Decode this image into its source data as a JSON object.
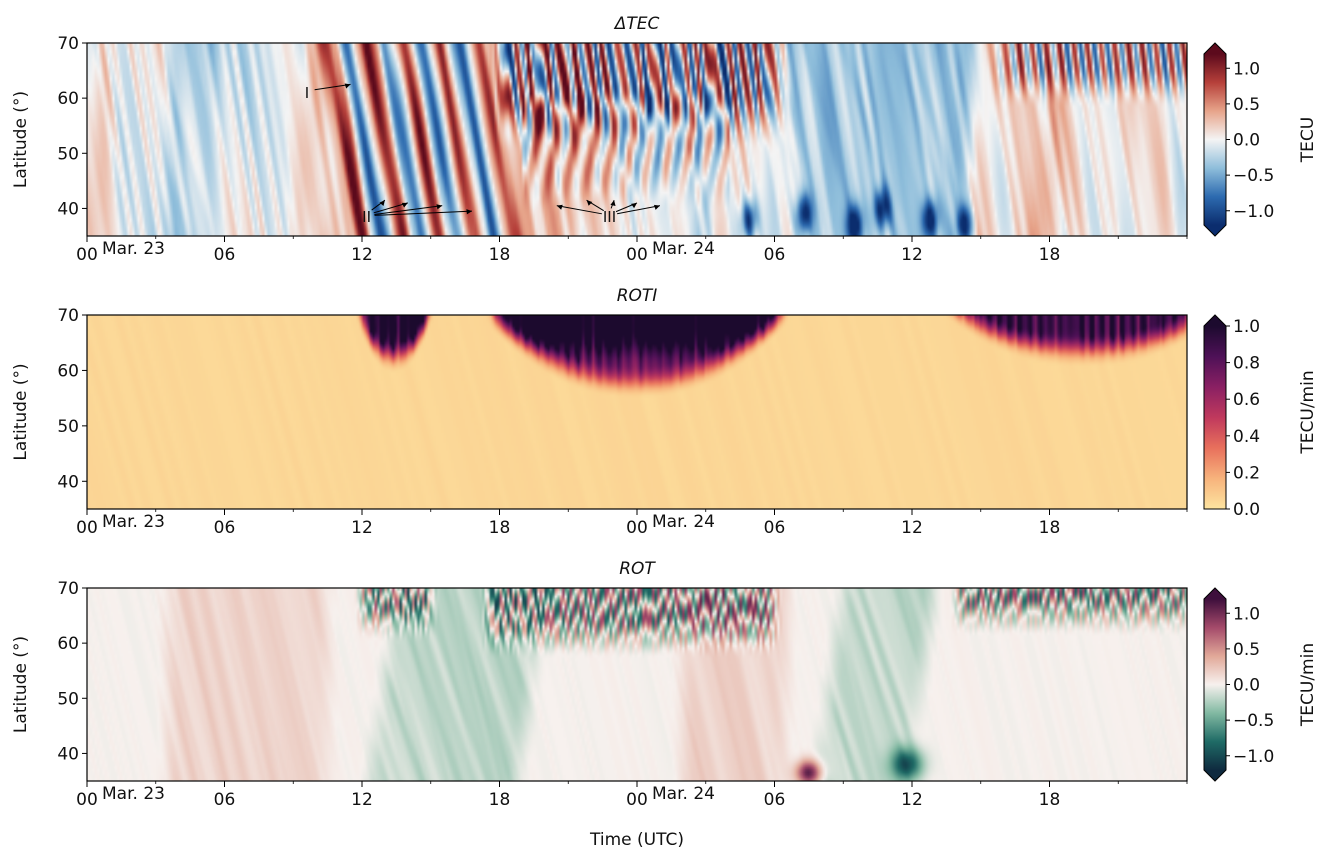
{
  "figure_xlabel": "Time (UTC)",
  "x_ticks_minor_hours": 3,
  "chart_data": [
    {
      "type": "heatmap",
      "title": "ΔTEC",
      "ylabel": "Latitude (°)",
      "ylim": [
        35,
        70
      ],
      "xlim_hours": [
        0,
        48
      ],
      "y_ticks": [
        40,
        50,
        60,
        70
      ],
      "x_ticks": [
        {
          "hour": 0,
          "label": "00"
        },
        {
          "hour": 6,
          "label": "06"
        },
        {
          "hour": 12,
          "label": "12"
        },
        {
          "hour": 18,
          "label": "18"
        },
        {
          "hour": 24,
          "label": "00"
        },
        {
          "hour": 30,
          "label": "06"
        },
        {
          "hour": 36,
          "label": "12"
        },
        {
          "hour": 42,
          "label": "18"
        }
      ],
      "date_labels": [
        {
          "hour": 0,
          "label": "Mar. 23"
        },
        {
          "hour": 24,
          "label": "Mar. 24"
        }
      ],
      "colorbar": {
        "label": "TECU",
        "min": -1.2,
        "max": 1.2,
        "ticks": [
          -1.0,
          -0.5,
          0.0,
          0.5,
          1.0
        ],
        "tick_labels": [
          "−1.0",
          "−0.5",
          "0.0",
          "0.5",
          "1.0"
        ],
        "extend": "both",
        "colormap": "RdBu_r"
      },
      "colormap_stops": [
        "#0b2d6e",
        "#2d6bb0",
        "#8fbedb",
        "#f4f4f4",
        "#e7a48a",
        "#b6403a",
        "#5c0a1c"
      ],
      "annotations": [
        {
          "label": "I",
          "at": [
            9.6,
            60
          ],
          "arrows_to": [
            [
              11.5,
              62.5
            ]
          ]
        },
        {
          "label": "II",
          "at": [
            12.2,
            37.5
          ],
          "arrows_to": [
            [
              13.0,
              41.5
            ],
            [
              14.0,
              41.0
            ],
            [
              15.5,
              40.5
            ],
            [
              16.8,
              39.5
            ]
          ]
        },
        {
          "label": "III",
          "at": [
            22.8,
            37.5
          ],
          "arrows_to": [
            [
              20.5,
              40.5
            ],
            [
              21.8,
              41.5
            ],
            [
              23.0,
              41.5
            ],
            [
              24.0,
              41.0
            ],
            [
              25.0,
              40.5
            ]
          ]
        }
      ],
      "features": {
        "tads": [
          {
            "t0": 10.4,
            "dir": 1,
            "amp": 0.95
          },
          {
            "t0": 11.3,
            "dir": -1,
            "amp": 0.9
          },
          {
            "t0": 12.2,
            "dir": 1,
            "amp": 0.95
          },
          {
            "t0": 13.0,
            "dir": -1,
            "amp": 0.85
          },
          {
            "t0": 13.8,
            "dir": 1,
            "amp": 0.95
          },
          {
            "t0": 14.6,
            "dir": -1,
            "amp": 0.9
          },
          {
            "t0": 15.4,
            "dir": 1,
            "amp": 0.9
          },
          {
            "t0": 16.2,
            "dir": -1,
            "amp": 0.85
          },
          {
            "t0": 17.1,
            "dir": 1,
            "amp": 0.7
          }
        ],
        "blue_bands": [
          [
            4.0,
            5.2
          ],
          [
            31.0,
            38.0
          ]
        ],
        "red_bands": [
          [
            10.0,
            12.5
          ],
          [
            19.0,
            21.0
          ],
          [
            39.0,
            42.0
          ]
        ]
      }
    },
    {
      "type": "heatmap",
      "title": "ROTI",
      "ylabel": "Latitude (°)",
      "ylim": [
        35,
        70
      ],
      "xlim_hours": [
        0,
        48
      ],
      "y_ticks": [
        40,
        50,
        60,
        70
      ],
      "x_ticks": [
        {
          "hour": 0,
          "label": "00"
        },
        {
          "hour": 6,
          "label": "06"
        },
        {
          "hour": 12,
          "label": "12"
        },
        {
          "hour": 18,
          "label": "18"
        },
        {
          "hour": 24,
          "label": "00"
        },
        {
          "hour": 30,
          "label": "06"
        },
        {
          "hour": 36,
          "label": "12"
        },
        {
          "hour": 42,
          "label": "18"
        }
      ],
      "date_labels": [
        {
          "hour": 0,
          "label": "Mar. 23"
        },
        {
          "hour": 24,
          "label": "Mar. 24"
        }
      ],
      "colorbar": {
        "label": "TECU/min",
        "min": 0.0,
        "max": 1.0,
        "ticks": [
          0.0,
          0.2,
          0.4,
          0.6,
          0.8,
          1.0
        ],
        "tick_labels": [
          "0.0",
          "0.2",
          "0.4",
          "0.6",
          "0.8",
          "1.0"
        ],
        "extend": "max",
        "colormap": "magma_r"
      },
      "colormap_stops": [
        "#fde4a0",
        "#f7b37c",
        "#e8705c",
        "#c0395d",
        "#8a2063",
        "#4e1157",
        "#1c0a2e"
      ],
      "features": {
        "activity_regions": [
          {
            "start": 12.0,
            "end": 15.0,
            "center": 13.4,
            "min_lat": 62.0,
            "amp": 1.0
          },
          {
            "start": 17.8,
            "end": 30.3,
            "center": 24.0,
            "min_lat": 57.5,
            "amp": 1.05
          },
          {
            "start": 37.5,
            "end": 48.0,
            "center": 43.5,
            "min_lat": 63.0,
            "amp": 0.8
          }
        ]
      }
    },
    {
      "type": "heatmap",
      "title": "ROT",
      "ylabel": "Latitude (°)",
      "ylim": [
        35,
        70
      ],
      "xlim_hours": [
        0,
        48
      ],
      "y_ticks": [
        40,
        50,
        60,
        70
      ],
      "x_ticks": [
        {
          "hour": 0,
          "label": "00"
        },
        {
          "hour": 6,
          "label": "06"
        },
        {
          "hour": 12,
          "label": "12"
        },
        {
          "hour": 18,
          "label": "18"
        },
        {
          "hour": 24,
          "label": "00"
        },
        {
          "hour": 30,
          "label": "06"
        },
        {
          "hour": 36,
          "label": "12"
        },
        {
          "hour": 42,
          "label": "18"
        }
      ],
      "date_labels": [
        {
          "hour": 0,
          "label": "Mar. 23"
        },
        {
          "hour": 24,
          "label": "Mar. 24"
        }
      ],
      "colorbar": {
        "label": "TECU/min",
        "min": -1.2,
        "max": 1.2,
        "ticks": [
          -1.0,
          -0.5,
          0.0,
          0.5,
          1.0
        ],
        "tick_labels": [
          "−1.0",
          "−0.5",
          "0.0",
          "0.5",
          "1.0"
        ],
        "extend": "both",
        "colormap": "curl"
      },
      "colormap_stops": [
        "#0f2a3f",
        "#1f6b66",
        "#82b9a2",
        "#f7f1ee",
        "#e1a898",
        "#a44a6a",
        "#3e0f3c"
      ],
      "features": {
        "positive_bands": [
          [
            3.5,
            10.5
          ],
          [
            26.0,
            30.5
          ]
        ],
        "negative_bands": [
          [
            13.5,
            20.0
          ],
          [
            33.0,
            37.0
          ]
        ],
        "activity_regions": [
          {
            "start": 12.0,
            "end": 15.0,
            "center": 13.5,
            "min_lat": 63.0
          },
          {
            "start": 17.5,
            "end": 30.0,
            "center": 24.0,
            "min_lat": 60.0
          },
          {
            "start": 38.0,
            "end": 48.0,
            "center": 43.5,
            "min_lat": 64.0
          }
        ]
      }
    }
  ]
}
